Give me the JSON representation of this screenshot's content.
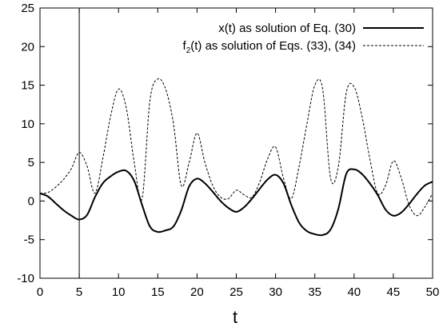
{
  "chart_data": {
    "type": "line",
    "title": "",
    "xlabel": "t",
    "ylabel": "",
    "xlim": [
      0,
      50
    ],
    "ylim": [
      -10,
      25
    ],
    "x_ticks": [
      "0",
      "5",
      "10",
      "15",
      "20",
      "25",
      "30",
      "35",
      "40",
      "45",
      "50"
    ],
    "y_ticks": [
      "-10",
      "-5",
      "0",
      "5",
      "10",
      "15",
      "20",
      "25"
    ],
    "grid": false,
    "legend_position": "top-right",
    "vertical_marker_x": 5,
    "series": [
      {
        "name": "x(t) as solution of Eq. (30)",
        "style": "solid",
        "color": "#000000",
        "x": [
          0,
          1,
          2,
          3,
          4,
          5,
          6,
          7,
          8,
          9,
          10,
          11,
          12,
          13,
          14,
          15,
          16,
          17,
          18,
          19,
          20,
          21,
          22,
          23,
          24,
          25,
          26,
          27,
          28,
          29,
          30,
          31,
          32,
          33,
          34,
          35,
          36,
          37,
          38,
          39,
          40,
          41,
          42,
          43,
          44,
          45,
          46,
          47,
          48,
          49,
          50
        ],
        "values": [
          1,
          0.6,
          -0.3,
          -1.2,
          -1.9,
          -2.4,
          -1.8,
          0.5,
          2.3,
          3.2,
          3.8,
          3.9,
          2.6,
          -0.5,
          -3.3,
          -4.0,
          -3.8,
          -3.3,
          -1.2,
          1.9,
          2.9,
          2.3,
          1.2,
          0.0,
          -0.9,
          -1.4,
          -0.8,
          0.3,
          1.6,
          2.8,
          3.4,
          2.3,
          -0.5,
          -2.8,
          -3.9,
          -4.3,
          -4.4,
          -3.7,
          -1.0,
          3.5,
          4.1,
          3.5,
          2.3,
          0.8,
          -1.1,
          -1.9,
          -1.5,
          -0.4,
          0.9,
          2.0,
          2.5
        ]
      },
      {
        "name": "f2(t) as solution of Eqs. (33), (34)",
        "style": "dashed",
        "color": "#000000",
        "x": [
          0,
          1,
          2,
          3,
          4,
          5,
          6,
          7,
          8,
          9,
          10,
          11,
          12,
          13,
          14,
          15,
          16,
          17,
          18,
          19,
          20,
          21,
          22,
          23,
          24,
          25,
          26,
          27,
          28,
          29,
          30,
          31,
          32,
          33,
          34,
          35,
          36,
          37,
          38,
          39,
          40,
          41,
          42,
          43,
          44,
          45,
          46,
          47,
          48,
          49,
          50
        ],
        "values": [
          1,
          1.1,
          1.8,
          2.8,
          4.2,
          6.3,
          4.5,
          1.0,
          5.5,
          11.0,
          14.5,
          12.0,
          5.0,
          0.3,
          13.0,
          15.8,
          14.5,
          10.0,
          2.0,
          5.0,
          8.8,
          5.0,
          2.0,
          0.5,
          0.3,
          1.4,
          0.8,
          0.5,
          2.5,
          5.5,
          7.0,
          3.0,
          0.3,
          4.5,
          10.0,
          15.0,
          14.5,
          3.0,
          4.5,
          14.0,
          14.8,
          11.0,
          5.5,
          1.0,
          2.0,
          5.2,
          3.0,
          -0.5,
          -1.9,
          -0.8,
          1.0
        ]
      }
    ]
  },
  "legend": {
    "entry1": {
      "text": "x(t) as solution of Eq. (30)"
    },
    "entry2": {
      "prefix": "f",
      "sub": "2",
      "suffix": "(t) as solution of Eqs. (33), (34)"
    }
  }
}
